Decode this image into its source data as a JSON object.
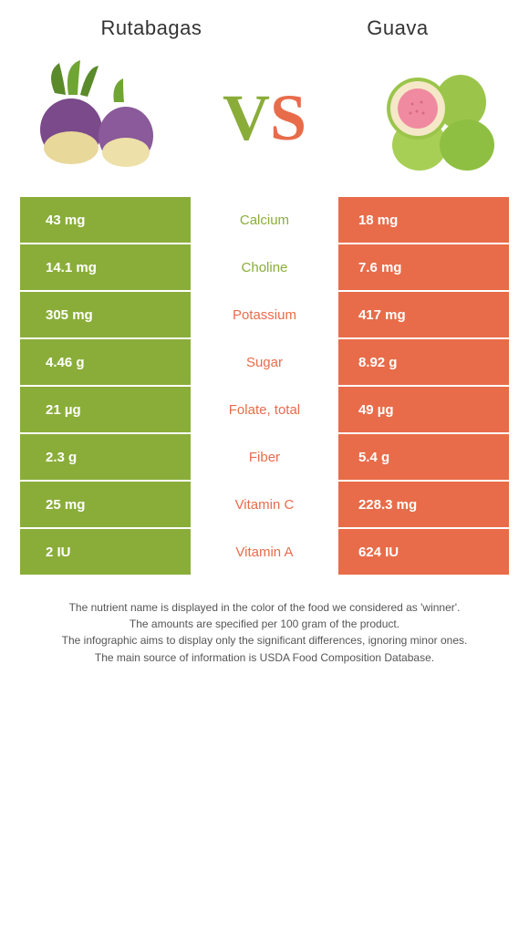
{
  "left_food": {
    "title": "Rutabagas",
    "color": "#8aad3a"
  },
  "right_food": {
    "title": "Guava",
    "color": "#e86c4a"
  },
  "vs": {
    "v": "V",
    "s": "S"
  },
  "rows": [
    {
      "left": "43 mg",
      "label": "Calcium",
      "right": "18 mg",
      "winner": "left"
    },
    {
      "left": "14.1 mg",
      "label": "Choline",
      "right": "7.6 mg",
      "winner": "left"
    },
    {
      "left": "305 mg",
      "label": "Potassium",
      "right": "417 mg",
      "winner": "right"
    },
    {
      "left": "4.46 g",
      "label": "Sugar",
      "right": "8.92 g",
      "winner": "right"
    },
    {
      "left": "21 µg",
      "label": "Folate, total",
      "right": "49 µg",
      "winner": "right"
    },
    {
      "left": "2.3 g",
      "label": "Fiber",
      "right": "5.4 g",
      "winner": "right"
    },
    {
      "left": "25 mg",
      "label": "Vitamin C",
      "right": "228.3 mg",
      "winner": "right"
    },
    {
      "left": "2 IU",
      "label": "Vitamin A",
      "right": "624 IU",
      "winner": "right"
    }
  ],
  "footer": {
    "l1": "The nutrient name is displayed in the color of the food we considered as 'winner'.",
    "l2": "The amounts are specified per 100 gram of the product.",
    "l3": "The infographic aims to display only the significant differences, ignoring minor ones.",
    "l4": "The main source of information is USDA Food Composition Database."
  }
}
